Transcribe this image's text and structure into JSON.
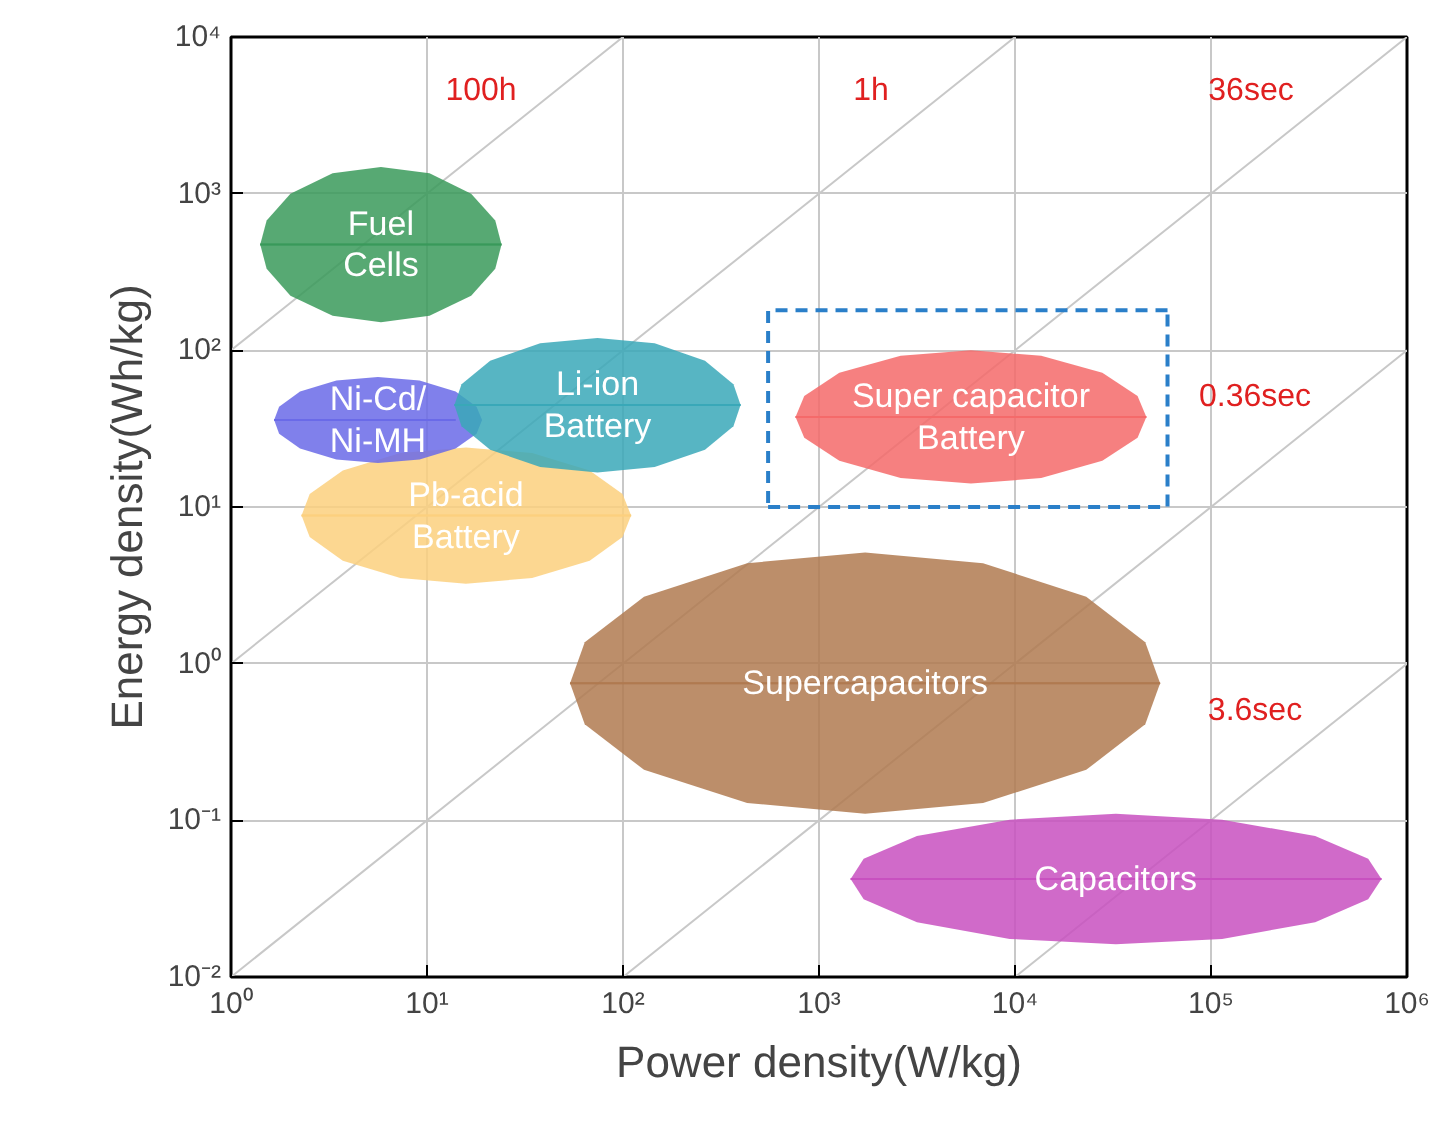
{
  "chart_data": {
    "type": "line",
    "xlabel": "Power density(W/kg)",
    "ylabel": "Energy density(Wh/kg)",
    "log": "xy",
    "grid": true,
    "xlim": [
      1,
      1000000
    ],
    "ylim": [
      0.01,
      10000
    ],
    "xticks": [
      {
        "value": 1,
        "label": "10⁰"
      },
      {
        "value": 10,
        "label": "10¹"
      },
      {
        "value": 100,
        "label": "10²"
      },
      {
        "value": 1000,
        "label": "10³"
      },
      {
        "value": 10000,
        "label": "10⁴"
      },
      {
        "value": 100000,
        "label": "10⁵"
      },
      {
        "value": 1000000,
        "label": "10⁶"
      }
    ],
    "yticks": [
      {
        "value": 0.01,
        "label": "10⁻²"
      },
      {
        "value": 0.1,
        "label": "10⁻¹"
      },
      {
        "value": 1,
        "label": "10⁰"
      },
      {
        "value": 10,
        "label": "10¹"
      },
      {
        "value": 100,
        "label": "10²"
      },
      {
        "value": 1000,
        "label": "10³"
      },
      {
        "value": 10000,
        "label": "10⁴"
      }
    ],
    "series": [
      {
        "color": "#c8c8c8",
        "x": [
          1,
          100
        ],
        "values": [
          100,
          10000
        ]
      },
      {
        "color": "#c8c8c8",
        "x": [
          1,
          10000
        ],
        "values": [
          1,
          10000
        ]
      },
      {
        "color": "#c8c8c8",
        "x": [
          1,
          1000000
        ],
        "values": [
          0.01,
          10000
        ]
      },
      {
        "color": "#c8c8c8",
        "x": [
          100,
          1000000
        ],
        "values": [
          0.01,
          100
        ]
      },
      {
        "color": "#c8c8c8",
        "x": [
          10000,
          1000000
        ],
        "values": [
          0.01,
          1
        ]
      },
      {
        "name": "Fuel\nCells",
        "color": "#3a9a5a",
        "x": [
          1.41,
          1.52,
          2.01,
          3.3,
          5.82,
          10.3,
          16.8,
          22.3,
          24.0
        ],
        "values": [
          473,
          473,
          473,
          473,
          473,
          473,
          473,
          473,
          473
        ],
        "upper": [
          473,
          675,
          1000,
          1350,
          1480,
          1350,
          1000,
          675,
          473
        ],
        "lower": [
          473,
          332,
          223,
          166,
          151,
          166,
          223,
          332,
          473
        ]
      },
      {
        "name": "Pb-acid\nBattery",
        "color": "#fcd07e",
        "x": [
          2.29,
          2.52,
          3.72,
          7.31,
          15.8,
          34.4,
          67.6,
          99.5,
          110
        ],
        "values": [
          8.81,
          8.81,
          8.81,
          8.81,
          8.81,
          8.81,
          8.81,
          8.81,
          8.81
        ],
        "upper": [
          8.81,
          12.1,
          17.1,
          22.1,
          24.0,
          22.1,
          17.1,
          12.1,
          8.81
        ],
        "lower": [
          8.81,
          6.44,
          4.54,
          3.52,
          3.24,
          3.52,
          4.54,
          6.44,
          8.81
        ]
      },
      {
        "name": "Ni-Cd/\nNi-MH",
        "color": "#6a6ae8",
        "x": [
          1.66,
          1.76,
          2.25,
          3.45,
          5.62,
          9.16,
          14.0,
          17.9,
          19.1
        ],
        "values": [
          35.9,
          35.9,
          35.9,
          35.9,
          35.9,
          35.9,
          35.9,
          null,
          null
        ],
        "upper": [
          35.9,
          43.7,
          54.6,
          64.1,
          67.6,
          64.1,
          54.6,
          43.7,
          35.9
        ],
        "lower": [
          35.9,
          29.4,
          23.6,
          20.1,
          19.1,
          20.1,
          23.6,
          29.4,
          35.9
        ]
      },
      {
        "name": "Li-ion\nBattery",
        "color": "#3aa8b8",
        "x": [
          13.8,
          15.0,
          21.0,
          37.8,
          74.1,
          145,
          262,
          366,
          398
        ],
        "values": [
          44.7,
          44.7,
          44.7,
          44.7,
          44.7,
          44.7,
          44.7,
          44.7,
          44.7
        ],
        "upper": [
          44.7,
          60.8,
          85.9,
          111,
          120,
          111,
          85.9,
          60.8,
          44.7
        ],
        "lower": [
          44.7,
          32.8,
          23.2,
          18.0,
          16.6,
          18.0,
          23.2,
          32.8,
          44.7
        ]
      },
      {
        "name": "Super capacitor\nBattery",
        "color": "#f56a6a",
        "x": [
          759,
          841,
          1270,
          2610,
          5960,
          13600,
          27900,
          42200,
          46800
        ],
        "values": [
          37.6,
          37.6,
          37.6,
          37.6,
          37.6,
          37.6,
          37.6,
          37.6,
          37.6
        ],
        "upper": [
          37.6,
          51.1,
          71.8,
          92.3,
          100,
          92.3,
          71.8,
          51.1,
          37.6
        ],
        "lower": [
          37.6,
          27.7,
          19.7,
          15.3,
          14.1,
          15.3,
          19.7,
          27.7,
          37.6
        ]
      },
      {
        "name": "Supercapacitors",
        "color": "#b07a50",
        "x": [
          53.7,
          63.8,
          128,
          430,
          1720,
          6870,
          23100,
          46200,
          55000
        ],
        "values": [
          0.75,
          0.75,
          0.75,
          0.75,
          0.75,
          0.75,
          0.75,
          0.75,
          0.75
        ],
        "upper": [
          0.75,
          1.37,
          2.67,
          4.38,
          5.13,
          4.38,
          2.67,
          1.37,
          0.75
        ],
        "lower": [
          0.75,
          0.411,
          0.21,
          0.129,
          0.11,
          0.129,
          0.21,
          0.411,
          0.75
        ]
      },
      {
        "name": "Capacitors",
        "color": "#c850c0",
        "x": [
          1450,
          1690,
          3160,
          9400,
          32700,
          114000,
          340000,
          634000,
          741000
        ],
        "values": [
          0.0422,
          0.0422,
          0.0422,
          0.0422,
          0.0422,
          0.0422,
          0.0422,
          0.0422,
          0.0422
        ],
        "upper": [
          0.0422,
          0.0568,
          0.0793,
          0.101,
          0.11,
          0.101,
          0.0793,
          0.0568,
          0.0422
        ],
        "lower": [
          0.0422,
          0.0313,
          0.0224,
          0.0175,
          0.0162,
          0.0175,
          0.0224,
          0.0313,
          0.0422
        ]
      },
      {
        "line_style": "dashed",
        "color": "#2a7fc9",
        "x": [
          550,
          60000,
          60000
        ],
        "values": [
          10,
          10,
          180
        ]
      },
      {
        "line_style": "dashed",
        "color": "#2a7fc9",
        "x": [
          60000,
          550,
          550
        ],
        "values": [
          180,
          180,
          10
        ]
      }
    ],
    "annotations": [
      "100h",
      "1h",
      "36sec",
      "0.36sec",
      "3.6sec"
    ]
  }
}
